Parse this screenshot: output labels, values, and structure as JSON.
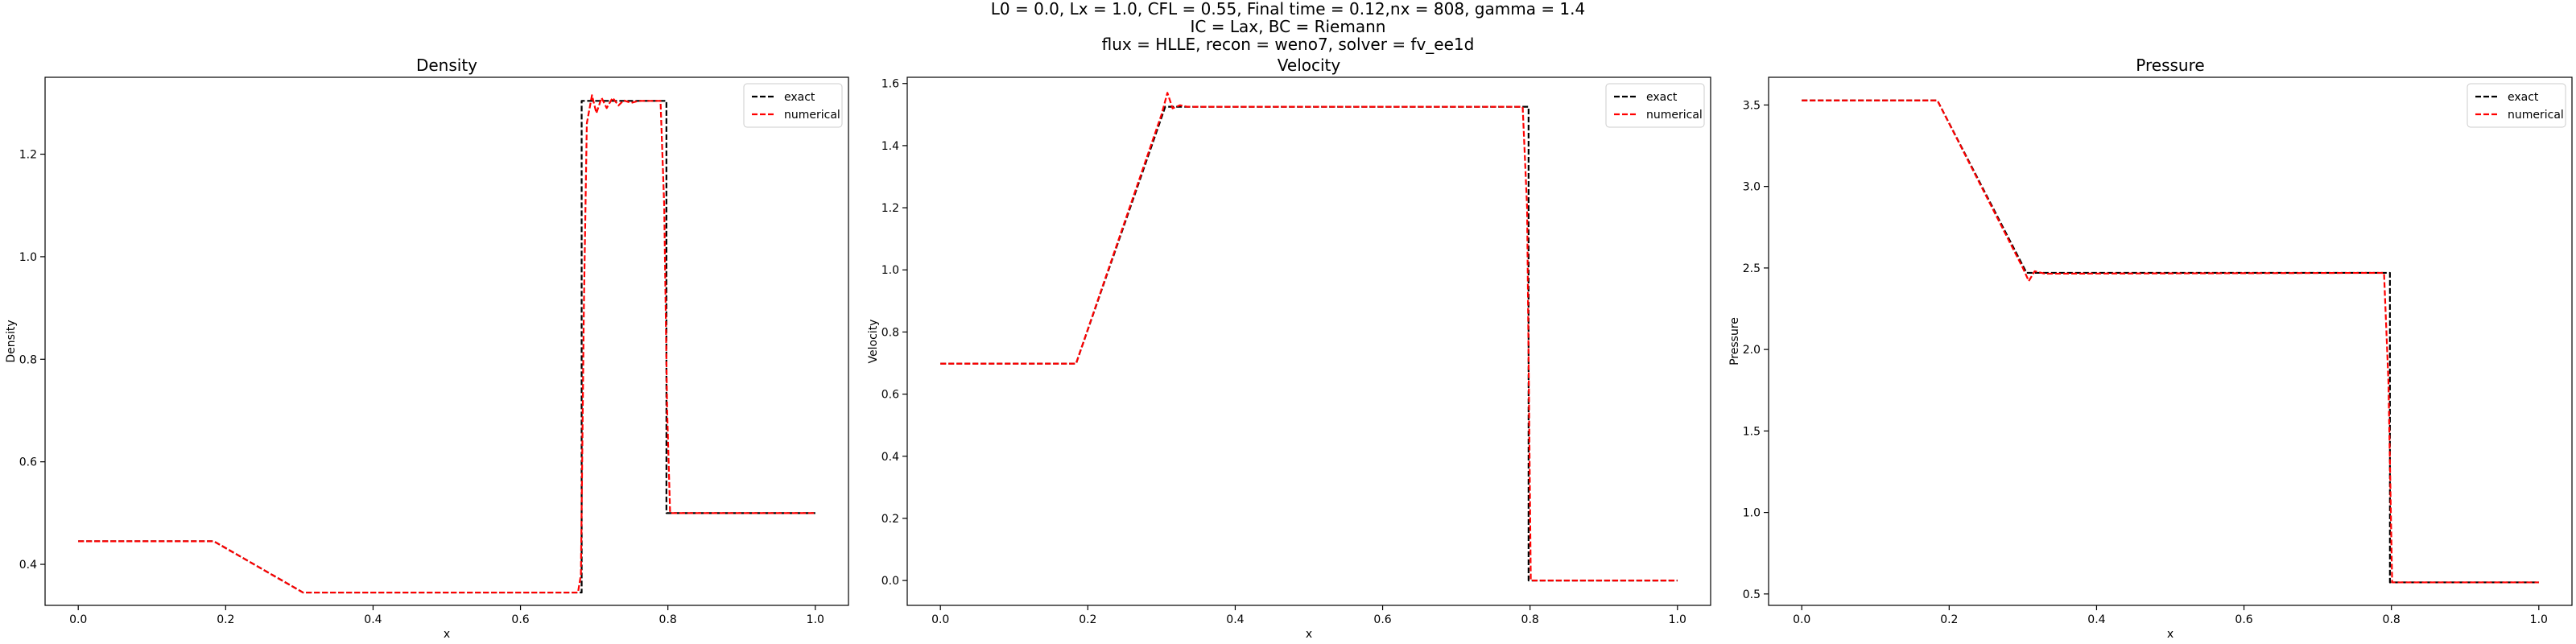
{
  "figure": {
    "suptitle_lines": [
      "L0 = 0.0, Lx = 1.0, CFL = 0.55, Final time = 0.12,nx = 808, gamma = 1.4",
      "IC = Lax, BC = Riemann",
      "flux = HLLE, recon = weno7, solver = fv_ee1d"
    ]
  },
  "chart_data": [
    {
      "type": "line",
      "title": "Density",
      "xlabel": "x",
      "ylabel": "Density",
      "xlim": [
        -0.045,
        1.045
      ],
      "ylim": [
        0.32,
        1.35
      ],
      "xticks": [
        0.0,
        0.2,
        0.4,
        0.6,
        0.8,
        1.0
      ],
      "xtick_labels": [
        "0.0",
        "0.2",
        "0.4",
        "0.6",
        "0.8",
        "1.0"
      ],
      "yticks": [
        0.4,
        0.6,
        0.8,
        1.0,
        1.2
      ],
      "ytick_labels": [
        "0.4",
        "0.6",
        "0.8",
        "1.0",
        "1.2"
      ],
      "grid": false,
      "legend_position": "top-right",
      "series": [
        {
          "name": "exact",
          "color": "#000000",
          "style": "dashed",
          "x": [
            0.0,
            0.184,
            0.305,
            0.683,
            0.683,
            0.798,
            0.798,
            1.0
          ],
          "y": [
            0.445,
            0.445,
            0.345,
            0.345,
            1.304,
            1.304,
            0.5,
            0.5
          ]
        },
        {
          "name": "numerical",
          "color": "#ff0000",
          "style": "dashed",
          "x": [
            0.0,
            0.184,
            0.305,
            0.678,
            0.682,
            0.686,
            0.69,
            0.697,
            0.703,
            0.71,
            0.717,
            0.725,
            0.733,
            0.74,
            0.75,
            0.76,
            0.79,
            0.795,
            0.799,
            0.803,
            1.0
          ],
          "y": [
            0.445,
            0.445,
            0.345,
            0.345,
            0.38,
            0.9,
            1.26,
            1.315,
            1.28,
            1.31,
            1.29,
            1.31,
            1.295,
            1.305,
            1.3,
            1.304,
            1.304,
            1.1,
            0.7,
            0.5,
            0.5
          ]
        }
      ]
    },
    {
      "type": "line",
      "title": "Velocity",
      "xlabel": "x",
      "ylabel": "Velocity",
      "xlim": [
        -0.045,
        1.045
      ],
      "ylim": [
        -0.08,
        1.62
      ],
      "xticks": [
        0.0,
        0.2,
        0.4,
        0.6,
        0.8,
        1.0
      ],
      "xtick_labels": [
        "0.0",
        "0.2",
        "0.4",
        "0.6",
        "0.8",
        "1.0"
      ],
      "yticks": [
        0.0,
        0.2,
        0.4,
        0.6,
        0.8,
        1.0,
        1.2,
        1.4,
        1.6
      ],
      "ytick_labels": [
        "0.0",
        "0.2",
        "0.4",
        "0.6",
        "0.8",
        "1.0",
        "1.2",
        "1.4",
        "1.6"
      ],
      "grid": false,
      "legend_position": "top-right",
      "series": [
        {
          "name": "exact",
          "color": "#000000",
          "style": "dashed",
          "x": [
            0.0,
            0.184,
            0.305,
            0.798,
            0.798,
            1.0
          ],
          "y": [
            0.698,
            0.698,
            1.525,
            1.525,
            0.0,
            0.0
          ]
        },
        {
          "name": "numerical",
          "color": "#ff0000",
          "style": "dashed",
          "x": [
            0.0,
            0.184,
            0.3,
            0.308,
            0.315,
            0.325,
            0.335,
            0.79,
            0.796,
            0.801,
            1.0
          ],
          "y": [
            0.698,
            0.698,
            1.5,
            1.57,
            1.52,
            1.53,
            1.525,
            1.525,
            1.2,
            0.0,
            0.0
          ]
        }
      ]
    },
    {
      "type": "line",
      "title": "Pressure",
      "xlabel": "x",
      "ylabel": "Pressure",
      "xlim": [
        -0.045,
        1.045
      ],
      "ylim": [
        0.43,
        3.67
      ],
      "xticks": [
        0.0,
        0.2,
        0.4,
        0.6,
        0.8,
        1.0
      ],
      "xtick_labels": [
        "0.0",
        "0.2",
        "0.4",
        "0.6",
        "0.8",
        "1.0"
      ],
      "yticks": [
        0.5,
        1.0,
        1.5,
        2.0,
        2.5,
        3.0,
        3.5
      ],
      "ytick_labels": [
        "0.5",
        "1.0",
        "1.5",
        "2.0",
        "2.5",
        "3.0",
        "3.5"
      ],
      "grid": false,
      "legend_position": "top-right",
      "series": [
        {
          "name": "exact",
          "color": "#000000",
          "style": "dashed",
          "x": [
            0.0,
            0.184,
            0.305,
            0.798,
            0.798,
            1.0
          ],
          "y": [
            3.528,
            3.528,
            2.47,
            2.47,
            0.571,
            0.571
          ]
        },
        {
          "name": "numerical",
          "color": "#ff0000",
          "style": "dashed",
          "x": [
            0.0,
            0.184,
            0.3,
            0.308,
            0.316,
            0.33,
            0.79,
            0.796,
            0.801,
            1.0
          ],
          "y": [
            3.528,
            3.528,
            2.5,
            2.42,
            2.48,
            2.465,
            2.47,
            1.8,
            0.571,
            0.571
          ]
        }
      ]
    }
  ]
}
